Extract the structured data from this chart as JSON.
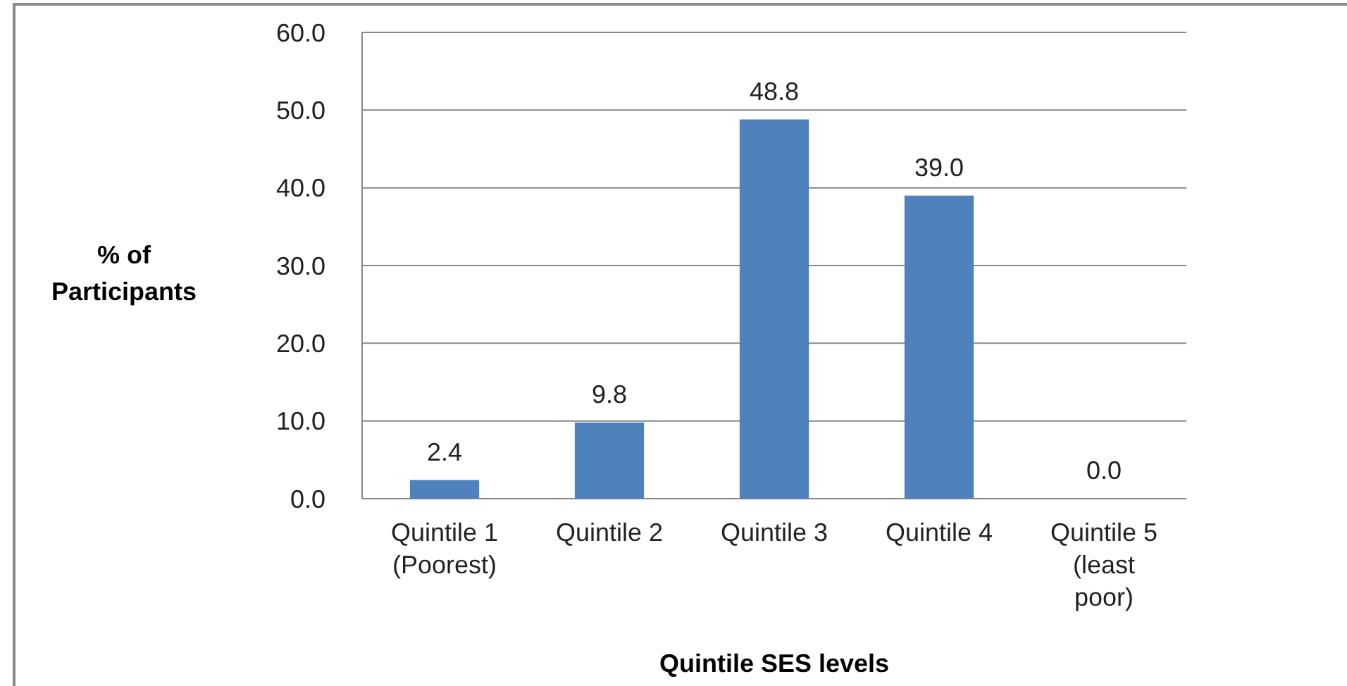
{
  "chart_data": {
    "type": "bar",
    "xlabel": "Quintile SES levels",
    "ylabel": "% of\nParticipants",
    "categories": [
      "Quintile 1\n(Poorest)",
      "Quintile 2",
      "Quintile 3",
      "Quintile 4",
      "Quintile 5\n(least\npoor)"
    ],
    "values": [
      2.4,
      9.8,
      48.8,
      39.0,
      0.0
    ],
    "value_labels": [
      "2.4",
      "9.8",
      "48.8",
      "39.0",
      "0.0"
    ],
    "color": "#4f81bd",
    "ylim": [
      0,
      60
    ],
    "yticks": [
      {
        "value": 0,
        "label": "0.0"
      },
      {
        "value": 10,
        "label": "10.0"
      },
      {
        "value": 20,
        "label": "20.0"
      },
      {
        "value": 30,
        "label": "30.0"
      },
      {
        "value": 40,
        "label": "40.0"
      },
      {
        "value": 50,
        "label": "50.0"
      },
      {
        "value": 60,
        "label": "60.0"
      }
    ],
    "grid": "y"
  }
}
